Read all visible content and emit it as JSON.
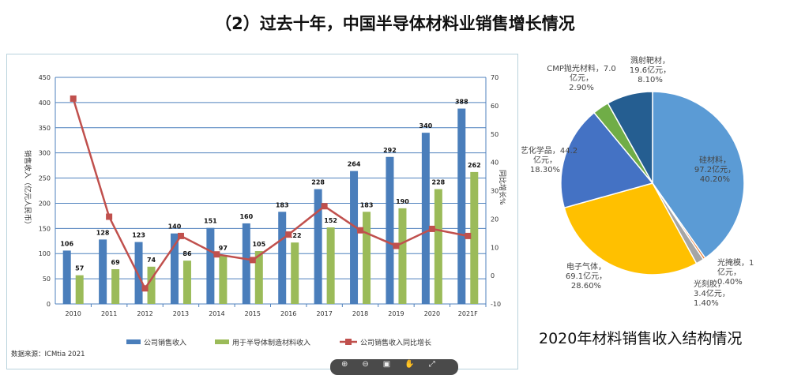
{
  "title": "（2）过去十年，中国半导体材料业销售增长情况",
  "chart_data": [
    {
      "type": "bar+line",
      "categories": [
        "2010",
        "2011",
        "2012",
        "2013",
        "2014",
        "2015",
        "2016",
        "2017",
        "2018",
        "2019",
        "2020",
        "2021F"
      ],
      "series": [
        {
          "name": "公司销售收入",
          "kind": "bar",
          "axis": "left",
          "color": "#4a7ebb",
          "values": [
            106,
            128,
            123,
            140,
            151,
            160,
            183,
            228,
            264,
            292,
            340,
            388
          ]
        },
        {
          "name": "用于半导体制造材料收入",
          "kind": "bar",
          "axis": "left",
          "color": "#9bbb59",
          "values": [
            57,
            69,
            74,
            86,
            97,
            105,
            122,
            152,
            183,
            190,
            228,
            262
          ]
        },
        {
          "name": "公司销售收入同比增长",
          "kind": "line",
          "axis": "right",
          "color": "#c0504d",
          "values": [
            62.5,
            20.8,
            -4.5,
            14,
            7.5,
            5.5,
            14.5,
            24.5,
            16,
            10.5,
            16.5,
            14
          ]
        }
      ],
      "ylabel": "销售收入（亿元人民币）",
      "y2label": "同比增长%",
      "ylim": [
        0,
        450
      ],
      "yticks": [
        0,
        50,
        100,
        150,
        200,
        250,
        300,
        350,
        400,
        450
      ],
      "y2lim": [
        -10,
        70
      ],
      "y2ticks": [
        -10,
        0,
        10,
        20,
        30,
        40,
        50,
        60,
        70
      ],
      "grid": true,
      "legend": "bottom",
      "source": "数据来源：ICMtia 2021"
    },
    {
      "type": "pie",
      "title": "2020年材料销售收入结构情况",
      "slices": [
        {
          "label": "硅材料，",
          "value_text": "97.2亿元，",
          "pct_text": "40.20%",
          "value": 40.2,
          "color": "#5b9bd5"
        },
        {
          "label": "光掩模，1",
          "value_text": "亿元，",
          "pct_text": "0.40%",
          "value": 0.4,
          "color": "#ed7d31"
        },
        {
          "label": "光刻胶，",
          "value_text": "3.4亿元，",
          "pct_text": "1.40%",
          "value": 1.4,
          "color": "#a5a5a5"
        },
        {
          "label": "电子气体，",
          "value_text": "69.1亿元，",
          "pct_text": "28.60%",
          "value": 28.6,
          "color": "#ffc000"
        },
        {
          "label": "工艺化学品，44.2",
          "value_text": "亿元，",
          "pct_text": "18.30%",
          "value": 18.3,
          "color": "#4472c4"
        },
        {
          "label": "CMP抛光材料，7.0",
          "value_text": "亿元，",
          "pct_text": "2.90%",
          "value": 2.9,
          "color": "#70ad47"
        },
        {
          "label": "溅射靶材，",
          "value_text": "19.6亿元，",
          "pct_text": "8.10%",
          "value": 8.1,
          "color": "#255e91"
        }
      ]
    }
  ],
  "toolbar": {
    "icons": [
      "zoom-in-icon",
      "zoom-out-icon",
      "fit-icon",
      "hand-icon",
      "expand-icon"
    ],
    "glyphs": [
      "⊕",
      "⊖",
      "▣",
      "✋",
      "⤢"
    ]
  }
}
